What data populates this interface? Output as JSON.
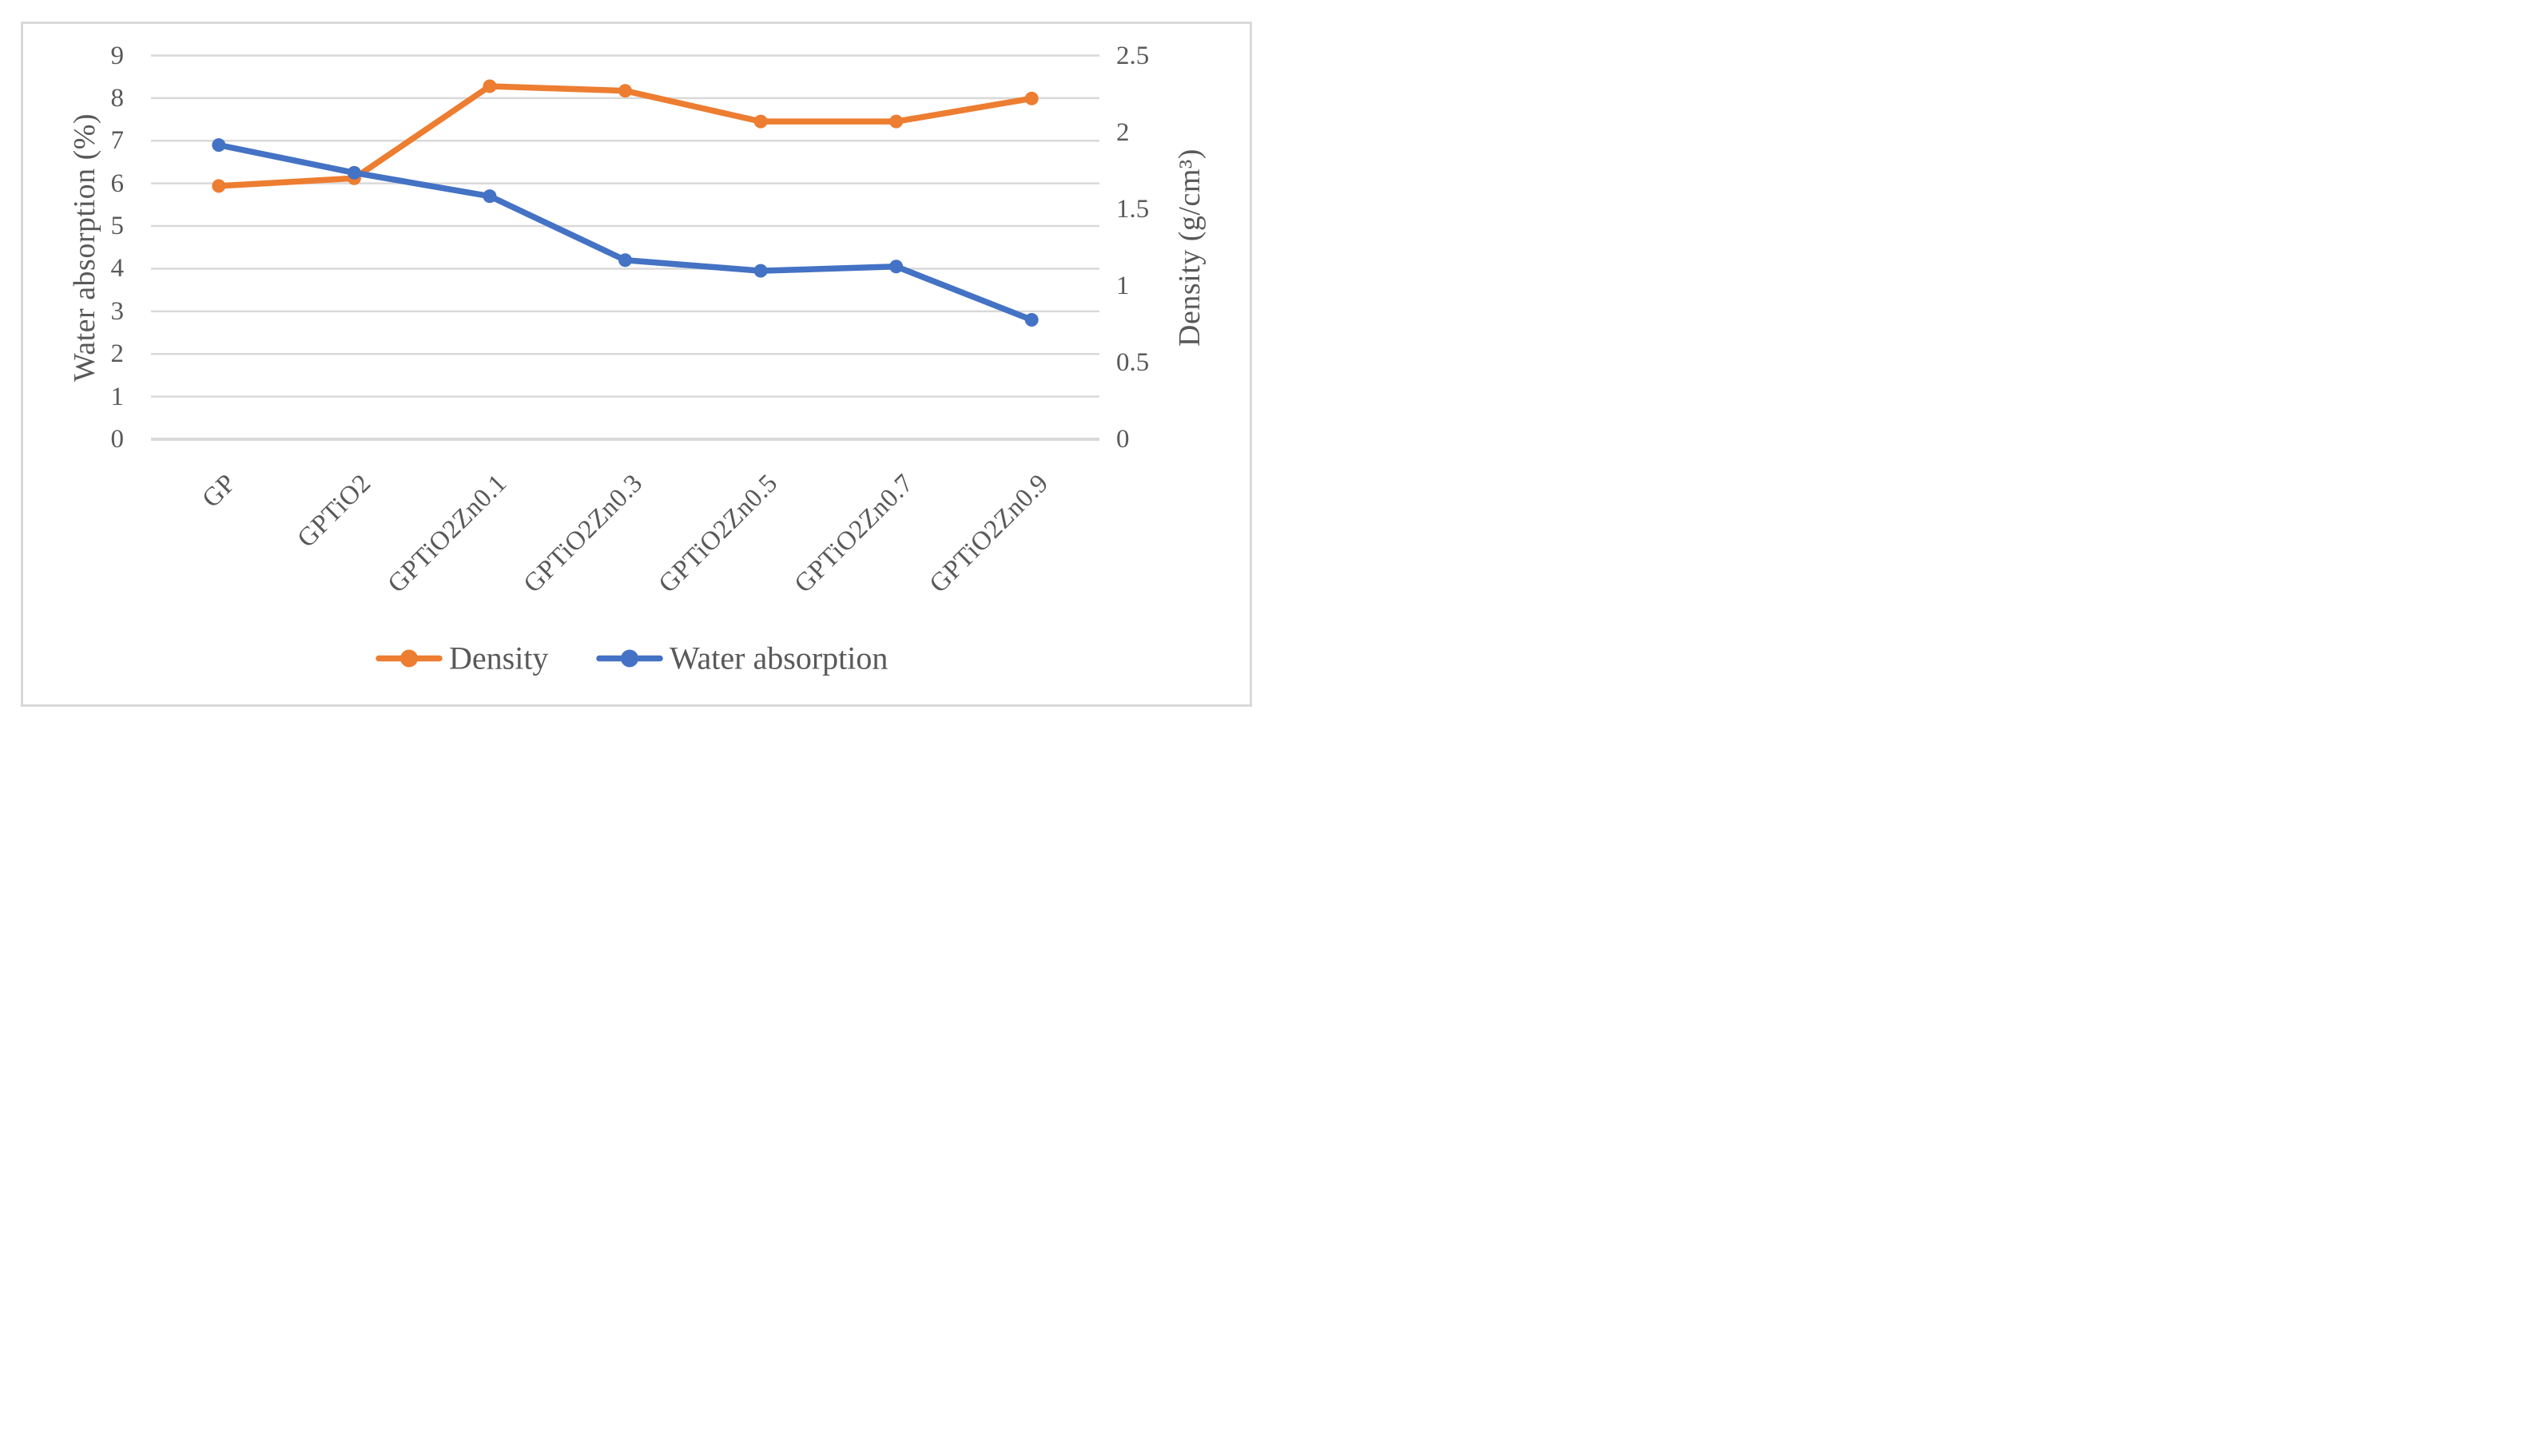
{
  "figure": {
    "background": "#ffffff",
    "border_color": "#d9d9d9",
    "text_color": "#595959",
    "grid_color": "#d9d9d9",
    "axis_line_color": "#d9d9d9"
  },
  "chart_data": {
    "type": "line",
    "categories": [
      "GP",
      "GPTiO2",
      "GPTiO2Zn0.1",
      "GPTiO2Zn0.3",
      "GPTiO2Zn0.5",
      "GPTiO2Zn0.7",
      "GPTiO2Zn0.9"
    ],
    "series": [
      {
        "name": "Density",
        "axis": "right",
        "color": "#ED7D31",
        "values": [
          1.65,
          1.7,
          2.3,
          2.27,
          2.07,
          2.07,
          2.22
        ]
      },
      {
        "name": "Water absorption",
        "axis": "left",
        "color": "#4472C4",
        "values": [
          6.9,
          6.25,
          5.7,
          4.2,
          3.95,
          4.05,
          2.8
        ]
      }
    ],
    "left_axis": {
      "title": "Water absorption (%)",
      "min": 0,
      "max": 9,
      "ticks": [
        "0",
        "1",
        "2",
        "3",
        "4",
        "5",
        "6",
        "7",
        "8",
        "9"
      ]
    },
    "right_axis": {
      "title": "Density (g/cm³)",
      "min": 0,
      "max": 2.5,
      "ticks": [
        "0",
        "0.5",
        "1",
        "1.5",
        "2",
        "2.5"
      ]
    },
    "grid": "horizontal",
    "legend": {
      "position": "bottom",
      "items": [
        "Density",
        "Water absorption"
      ]
    }
  }
}
